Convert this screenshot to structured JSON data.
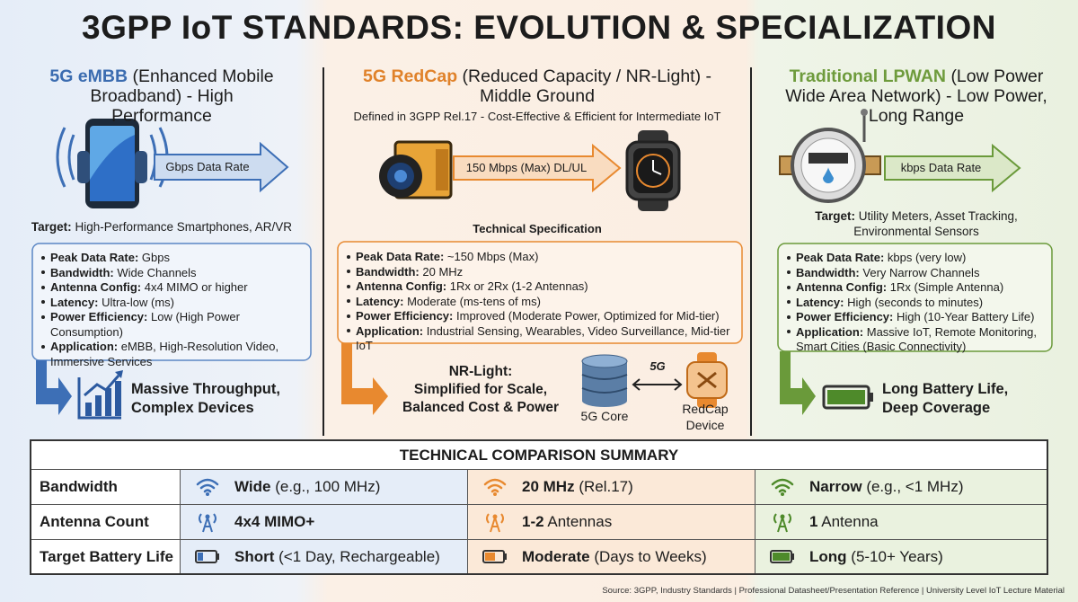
{
  "title": "3GPP IoT STANDARDS: EVOLUTION & SPECIALIZATION",
  "columns": [
    {
      "name": "5G eMBB",
      "subtitle": "(Enhanced Mobile Broadband) - High Performance",
      "arrow_label": "Gbps Data Rate",
      "target_label": "Target:",
      "target": "High-Performance Smartphones, AR/VR",
      "specs": [
        {
          "label": "Peak Data Rate:",
          "value": "Gbps"
        },
        {
          "label": "Bandwidth:",
          "value": "Wide Channels"
        },
        {
          "label": "Antenna Config:",
          "value": "4x4 MIMO or higher"
        },
        {
          "label": "Latency:",
          "value": "Ultra-low (ms)"
        },
        {
          "label": "Power Efficiency:",
          "value": "Low (High Power Consumption)"
        },
        {
          "label": "Application:",
          "value": "eMBB, High-Resolution Video, Immersive Services"
        }
      ],
      "outcome": [
        "Massive Throughput,",
        "Complex Devices"
      ]
    },
    {
      "name": "5G RedCap",
      "subtitle": "(Reduced Capacity / NR-Light) - Middle Ground",
      "note": "Defined in 3GPP Rel.17 - Cost-Effective & Efficient for Intermediate IoT",
      "arrow_label": "150 Mbps (Max) DL/UL",
      "spec_heading": "Technical Specification",
      "specs": [
        {
          "label": "Peak Data Rate:",
          "value": "~150 Mbps (Max)"
        },
        {
          "label": "Bandwidth:",
          "value": "20 MHz"
        },
        {
          "label": "Antenna Config:",
          "value": "1Rx or 2Rx (1-2 Antennas)"
        },
        {
          "label": "Latency:",
          "value": "Moderate (ms-tens of ms)"
        },
        {
          "label": "Power Efficiency:",
          "value": "Improved (Moderate Power, Optimized for Mid-tier)"
        },
        {
          "label": "Application:",
          "value": "Industrial Sensing, Wearables, Video Surveillance, Mid-tier IoT"
        }
      ],
      "outcome": [
        "NR-Light:",
        "Simplified for Scale,",
        "Balanced Cost & Power"
      ],
      "core_label": "5G Core",
      "link_label": "5G",
      "device_label": [
        "RedCap",
        "Device"
      ]
    },
    {
      "name": "Traditional LPWAN",
      "subtitle": "(Low Power Wide Area Network) - Low Power, Long Range",
      "arrow_label": "kbps Data Rate",
      "target_label": "Target:",
      "target": "Utility Meters, Asset Tracking, Environmental Sensors",
      "specs": [
        {
          "label": "Peak Data Rate:",
          "value": "kbps (very low)"
        },
        {
          "label": "Bandwidth:",
          "value": "Very Narrow Channels"
        },
        {
          "label": "Antenna Config:",
          "value": "1Rx (Simple Antenna)"
        },
        {
          "label": "Latency:",
          "value": "High (seconds to minutes)"
        },
        {
          "label": "Power Efficiency:",
          "value": "High (10-Year Battery Life)"
        },
        {
          "label": "Application:",
          "value": "Massive IoT, Remote Monitoring, Smart Cities (Basic Connectivity)"
        }
      ],
      "outcome": [
        "Long Battery Life,",
        "Deep Coverage"
      ]
    }
  ],
  "summary": {
    "title": "TECHNICAL COMPARISON SUMMARY",
    "rows": [
      {
        "label": "Bandwidth",
        "cells": [
          {
            "strong": "Wide",
            "rest": "(e.g., 100 MHz)"
          },
          {
            "strong": "20 MHz",
            "rest": "(Rel.17)"
          },
          {
            "strong": "Narrow",
            "rest": "(e.g., <1 MHz)"
          }
        ]
      },
      {
        "label": "Antenna Count",
        "cells": [
          {
            "strong": "4x4 MIMO+"
          },
          {
            "strong": "1-2",
            "rest": "Antennas"
          },
          {
            "strong": "1",
            "rest": "Antenna"
          }
        ]
      },
      {
        "label": "Target Battery Life",
        "cells": [
          {
            "strong": "Short",
            "rest": "(<1 Day, Rechargeable)"
          },
          {
            "strong": "Moderate",
            "rest": "(Days to Weeks)"
          },
          {
            "strong": "Long",
            "rest": "(5-10+ Years)"
          }
        ]
      }
    ]
  },
  "source": "Source: 3GPP, Industry Standards | Professional Datasheet/Presentation Reference | University Level IoT Lecture Material"
}
